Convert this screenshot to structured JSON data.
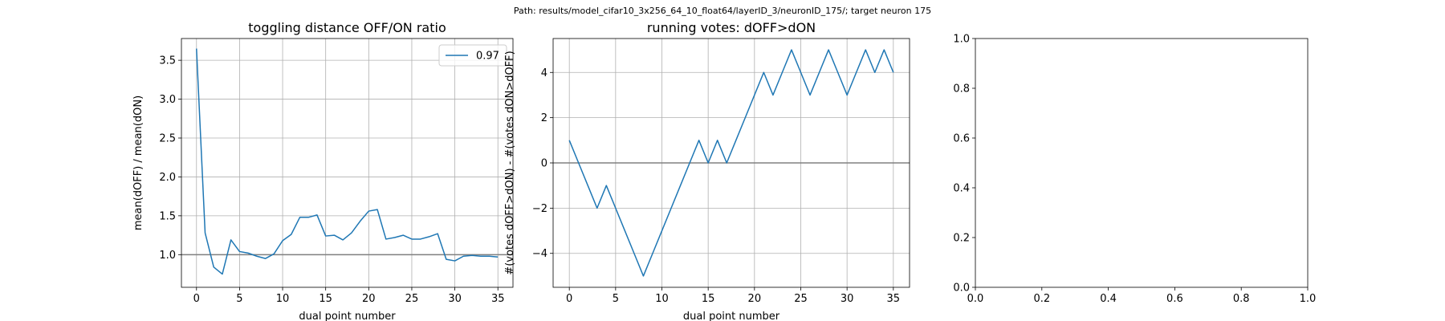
{
  "suptitle": "Path: results/model_cifar10_3x256_64_10_float64/layerID_3/neuronID_175/; target neuron 175",
  "colors": {
    "line": "#1f77b4",
    "ref_line": "#808080",
    "grid": "#b0b0b0",
    "axes": "#000000"
  },
  "chart_data": [
    {
      "type": "line",
      "title": "toggling distance OFF/ON ratio",
      "xlabel": "dual point number",
      "ylabel": "mean(dOFF) / mean(dON)",
      "xlim": [
        -1.75,
        36.75
      ],
      "ylim": [
        0.58,
        3.78
      ],
      "xticks": [
        0,
        5,
        10,
        15,
        20,
        25,
        30,
        35
      ],
      "xtick_labels": [
        "0",
        "5",
        "10",
        "15",
        "20",
        "25",
        "30",
        "35"
      ],
      "yticks": [
        1.0,
        1.5,
        2.0,
        2.5,
        3.0,
        3.5
      ],
      "ytick_labels": [
        "1.0",
        "1.5",
        "2.0",
        "2.5",
        "3.0",
        "3.5"
      ],
      "grid": true,
      "hline": 1.0,
      "legend": {
        "placement": "top-right",
        "entries": [
          "0.97"
        ]
      },
      "series": [
        {
          "name": "0.97",
          "x": [
            0,
            1,
            2,
            3,
            4,
            5,
            6,
            7,
            8,
            9,
            10,
            11,
            12,
            13,
            14,
            15,
            16,
            17,
            18,
            19,
            20,
            21,
            22,
            23,
            24,
            25,
            26,
            27,
            28,
            29,
            30,
            31,
            32,
            33,
            34,
            35
          ],
          "y": [
            3.65,
            1.28,
            0.84,
            0.75,
            1.19,
            1.04,
            1.02,
            0.98,
            0.95,
            1.01,
            1.18,
            1.26,
            1.48,
            1.48,
            1.51,
            1.24,
            1.25,
            1.19,
            1.28,
            1.43,
            1.56,
            1.58,
            1.2,
            1.22,
            1.25,
            1.2,
            1.2,
            1.23,
            1.27,
            0.94,
            0.92,
            0.98,
            0.99,
            0.98,
            0.98,
            0.97
          ]
        }
      ]
    },
    {
      "type": "line",
      "title": "running votes: dOFF>dON",
      "xlabel": "dual point number",
      "ylabel": "#(votes dOFF>dON) - #(votes dON>dOFF)",
      "xlim": [
        -1.75,
        36.75
      ],
      "ylim": [
        -5.5,
        5.5
      ],
      "xticks": [
        0,
        5,
        10,
        15,
        20,
        25,
        30,
        35
      ],
      "xtick_labels": [
        "0",
        "5",
        "10",
        "15",
        "20",
        "25",
        "30",
        "35"
      ],
      "yticks": [
        -4,
        -2,
        0,
        2,
        4
      ],
      "ytick_labels": [
        "−4",
        "−2",
        "0",
        "2",
        "4"
      ],
      "grid": true,
      "hline": 0,
      "series": [
        {
          "x": [
            0,
            1,
            2,
            3,
            4,
            5,
            6,
            7,
            8,
            9,
            10,
            11,
            12,
            13,
            14,
            15,
            16,
            17,
            18,
            19,
            20,
            21,
            22,
            23,
            24,
            25,
            26,
            27,
            28,
            29,
            30,
            31,
            32,
            33,
            34,
            35
          ],
          "y": [
            1,
            0,
            -1,
            -2,
            -1,
            -2,
            -3,
            -4,
            -5,
            -4,
            -3,
            -2,
            -1,
            0,
            1,
            0,
            1,
            0,
            1,
            2,
            3,
            4,
            3,
            4,
            5,
            4,
            3,
            4,
            5,
            4,
            3,
            4,
            5,
            4,
            5,
            4
          ]
        }
      ]
    },
    {
      "type": "line",
      "title": "",
      "xlabel": "",
      "ylabel": "",
      "xlim": [
        0,
        1
      ],
      "ylim": [
        0,
        1
      ],
      "xticks": [
        0,
        0.2,
        0.4,
        0.6,
        0.8,
        1.0
      ],
      "xtick_labels": [
        "0.0",
        "0.2",
        "0.4",
        "0.6",
        "0.8",
        "1.0"
      ],
      "yticks": [
        0,
        0.2,
        0.4,
        0.6,
        0.8,
        1.0
      ],
      "ytick_labels": [
        "0.0",
        "0.2",
        "0.4",
        "0.6",
        "0.8",
        "1.0"
      ],
      "grid": false,
      "series": []
    }
  ]
}
